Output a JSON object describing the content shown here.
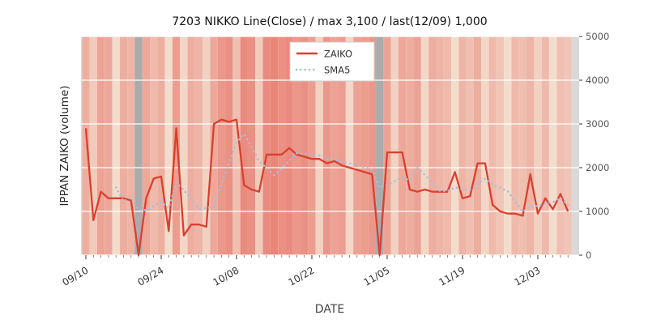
{
  "figure": {
    "title": "7203 NIKKO Line(Close) / max 3,100 / last(12/09) 1,000",
    "xlabel": "DATE",
    "ylabel": "IPPAN ZAIKO (volume)",
    "legend": {
      "zaiko": "ZAIKO",
      "sma5": "SMA5"
    }
  },
  "chart_data": {
    "type": "line",
    "title": "7203 NIKKO Line(Close) / max 3,100 / last(12/09) 1,000",
    "xlabel": "DATE",
    "ylabel": "IPPAN ZAIKO (volume)",
    "ylim": [
      0,
      5000
    ],
    "yticks": [
      0,
      1000,
      2000,
      3000,
      4000,
      5000
    ],
    "xticks": [
      {
        "i": 0,
        "label": "09/10"
      },
      {
        "i": 10,
        "label": "09/24"
      },
      {
        "i": 20,
        "label": "10/08"
      },
      {
        "i": 30,
        "label": "10/22"
      },
      {
        "i": 40,
        "label": "11/05"
      },
      {
        "i": 50,
        "label": "11/19"
      },
      {
        "i": 60,
        "label": "12/03"
      }
    ],
    "legend_position": "upper center",
    "grid": true,
    "annotations": {
      "max": 3100,
      "last_date": "12/09",
      "last_value": 1000
    },
    "series": [
      {
        "name": "ZAIKO",
        "color": "#d9402e",
        "style": "solid",
        "values": [
          2900,
          800,
          1450,
          1300,
          1300,
          1300,
          1250,
          0,
          1300,
          1750,
          1800,
          550,
          2900,
          450,
          700,
          700,
          650,
          3000,
          3100,
          3050,
          3100,
          1600,
          1500,
          1450,
          2300,
          2300,
          2300,
          2450,
          2300,
          2250,
          2200,
          2200,
          2100,
          2150,
          2050,
          2000,
          1950,
          1900,
          1850,
          0,
          2350,
          2350,
          2350,
          1500,
          1450,
          1500,
          1450,
          1450,
          1450,
          1900,
          1300,
          1350,
          2100,
          2100,
          1150,
          1000,
          950,
          950,
          900,
          1850,
          950,
          1300,
          1050,
          1400,
          1000
        ]
      },
      {
        "name": "SMA5",
        "color": "#a3bfdf",
        "style": "dotted",
        "values": [
          null,
          null,
          null,
          null,
          1550,
          1230,
          1320,
          1030,
          1030,
          1120,
          1220,
          1080,
          1660,
          1490,
          1280,
          1060,
          1080,
          1100,
          1630,
          2100,
          2580,
          2770,
          2470,
          2140,
          1990,
          1830,
          1970,
          2160,
          2330,
          2320,
          2300,
          2280,
          2210,
          2180,
          2140,
          2100,
          2050,
          2010,
          1950,
          1540,
          1610,
          1690,
          1780,
          1710,
          2000,
          1830,
          1650,
          1470,
          1460,
          1550,
          1510,
          1490,
          1620,
          1750,
          1600,
          1540,
          1460,
          1230,
          990,
          1130,
          1120,
          1190,
          1210,
          1310,
          1140
        ]
      }
    ],
    "background": {
      "description": "per-trading-day vertical heat stripes behind the lines; gray stripes mark no-data days",
      "colormap": [
        "#f4eedd",
        "#e87a6e"
      ],
      "gray_color": "#ababab",
      "edge_color": "#d9d9d9",
      "heat": [
        0.55,
        0.3,
        0.65,
        0.6,
        0.15,
        0.55,
        0.5,
        -1,
        0.6,
        0.45,
        0.55,
        0.15,
        0.7,
        0.2,
        0.55,
        0.5,
        0.25,
        0.6,
        0.75,
        0.8,
        0.4,
        0.85,
        0.8,
        0.3,
        0.85,
        0.9,
        0.8,
        0.85,
        0.75,
        0.8,
        0.7,
        0.25,
        0.75,
        0.65,
        0.7,
        0.2,
        0.65,
        0.7,
        0.75,
        -1,
        0.65,
        0.25,
        0.6,
        0.55,
        0.65,
        0.2,
        0.55,
        0.5,
        0.45,
        0.15,
        0.5,
        0.4,
        0.55,
        0.2,
        0.45,
        0.35,
        0.15,
        0.45,
        0.4,
        0.5,
        0.25,
        0.45,
        0.15,
        0.4,
        0.35
      ]
    }
  }
}
